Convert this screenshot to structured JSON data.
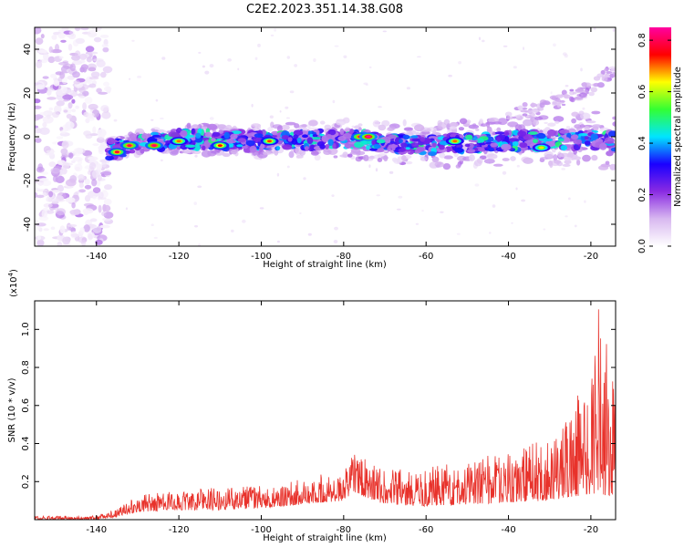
{
  "figure_title": "C2E2.2023.351.14.38.G08",
  "chart_data": [
    {
      "type": "heatmap",
      "title": "C2E2.2023.351.14.38.G08",
      "xlabel": "Height of straight line (km)",
      "ylabel": "Frequency (Hz)",
      "xlim": [
        -155,
        -14
      ],
      "ylim": [
        -50,
        50
      ],
      "x_ticks": [
        -140,
        -120,
        -100,
        -80,
        -60,
        -40,
        -20
      ],
      "y_ticks": [
        -40,
        -20,
        0,
        20,
        40
      ],
      "colorbar": {
        "label": "Normalized spectral amplitude",
        "range": [
          0.0,
          0.85
        ],
        "ticks": [
          0.0,
          0.2,
          0.4,
          0.6,
          0.8
        ],
        "colormap": [
          "#ffffff",
          "#d8b8f0",
          "#8a2be2",
          "#1a00ff",
          "#00e5ff",
          "#33ff33",
          "#ffff00",
          "#ff0000",
          "#ff00a0"
        ]
      },
      "noise_region_x": [
        -155,
        -137
      ],
      "ridge": [
        {
          "x": -137,
          "f": -6
        },
        {
          "x": -130,
          "f": -3
        },
        {
          "x": -120,
          "f": -1
        },
        {
          "x": -100,
          "f": -2
        },
        {
          "x": -80,
          "f": -1
        },
        {
          "x": -60,
          "f": -4
        },
        {
          "x": -40,
          "f": -2
        },
        {
          "x": -20,
          "f": -1
        },
        {
          "x": -15,
          "f": -2
        }
      ],
      "upper_branch": [
        {
          "x": -40,
          "f": 10
        },
        {
          "x": -30,
          "f": 15
        },
        {
          "x": -20,
          "f": 22
        },
        {
          "x": -15,
          "f": 30
        }
      ],
      "peaks": [
        {
          "x": -135,
          "f": -7,
          "v": 0.78
        },
        {
          "x": -132,
          "f": -4,
          "v": 0.8
        },
        {
          "x": -126,
          "f": -4,
          "v": 0.82
        },
        {
          "x": -120,
          "f": -2,
          "v": 0.7
        },
        {
          "x": -110,
          "f": -4,
          "v": 0.75
        },
        {
          "x": -98,
          "f": -2,
          "v": 0.72
        },
        {
          "x": -76,
          "f": 0,
          "v": 0.8
        },
        {
          "x": -74,
          "f": 0,
          "v": 0.85
        },
        {
          "x": -53,
          "f": -2,
          "v": 0.7
        },
        {
          "x": -32,
          "f": -5,
          "v": 0.65
        }
      ]
    },
    {
      "type": "line",
      "xlabel": "Height of straight line (km)",
      "ylabel": "SNR (10 * v/v)",
      "y_multiplier": "(x10",
      "y_multiplier_exp": "4",
      "y_multiplier_close": ")",
      "xlim": [
        -155,
        -14
      ],
      "ylim": [
        0,
        1.15
      ],
      "x_ticks": [
        -140,
        -120,
        -100,
        -80,
        -60,
        -40,
        -20
      ],
      "y_ticks": [
        0.2,
        0.4,
        0.6,
        0.8,
        1.0
      ],
      "y_tick_labels": [
        "0.2",
        "0.4",
        "0.6",
        "0.8",
        "1.0"
      ],
      "series": [
        {
          "color": "#e8322b",
          "envelope": [
            {
              "x": -155,
              "base": 0.0,
              "amp": 0.02
            },
            {
              "x": -140,
              "base": 0.0,
              "amp": 0.02
            },
            {
              "x": -136,
              "base": 0.01,
              "amp": 0.04
            },
            {
              "x": -130,
              "base": 0.04,
              "amp": 0.09
            },
            {
              "x": -120,
              "base": 0.05,
              "amp": 0.1
            },
            {
              "x": -110,
              "base": 0.05,
              "amp": 0.12
            },
            {
              "x": -100,
              "base": 0.06,
              "amp": 0.12
            },
            {
              "x": -90,
              "base": 0.08,
              "amp": 0.14
            },
            {
              "x": -80,
              "base": 0.1,
              "amp": 0.16
            },
            {
              "x": -77,
              "base": 0.14,
              "amp": 0.22
            },
            {
              "x": -75,
              "base": 0.12,
              "amp": 0.2
            },
            {
              "x": -70,
              "base": 0.08,
              "amp": 0.18
            },
            {
              "x": -60,
              "base": 0.07,
              "amp": 0.2
            },
            {
              "x": -50,
              "base": 0.08,
              "amp": 0.24
            },
            {
              "x": -40,
              "base": 0.09,
              "amp": 0.27
            },
            {
              "x": -30,
              "base": 0.1,
              "amp": 0.33
            },
            {
              "x": -25,
              "base": 0.12,
              "amp": 0.45
            },
            {
              "x": -20,
              "base": 0.13,
              "amp": 0.7
            },
            {
              "x": -18,
              "base": 0.14,
              "amp": 1.0
            },
            {
              "x": -16,
              "base": 0.12,
              "amp": 0.85
            },
            {
              "x": -14,
              "base": 0.12,
              "amp": 0.6
            }
          ]
        }
      ]
    }
  ]
}
